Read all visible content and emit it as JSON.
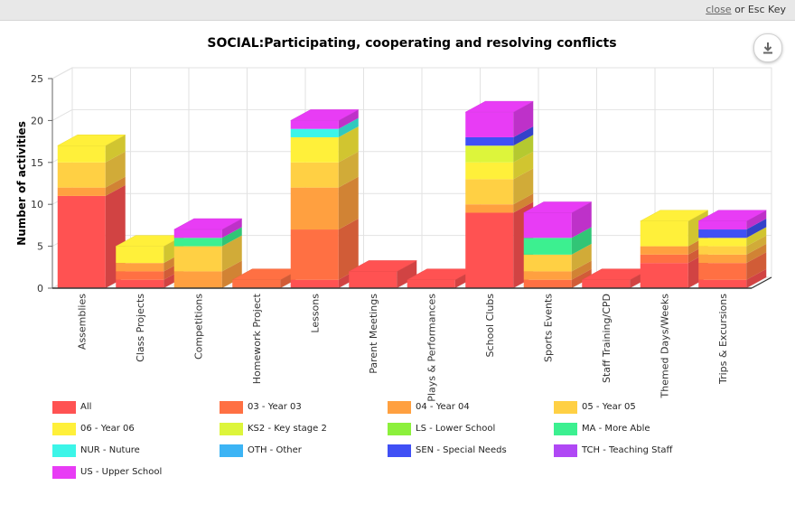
{
  "topbar": {
    "close_link": "close",
    "close_suffix": " or Esc Key"
  },
  "download_icon": "download-icon",
  "chart_data": {
    "type": "bar",
    "stacked": true,
    "three_d": true,
    "title": "SOCIAL:Participating, cooperating and resolving conflicts",
    "xlabel": "",
    "ylabel": "Number of activities",
    "ylim": [
      0,
      25
    ],
    "yticks": [
      0,
      5,
      10,
      15,
      20,
      25
    ],
    "grid": true,
    "legend_position": "bottom",
    "categories": [
      "Assemblies",
      "Class Projects",
      "Competitions",
      "Homework Project",
      "Lessons",
      "Parent Meetings",
      "Plays & Performances",
      "School Clubs",
      "Sports Events",
      "Staff Training/CPD",
      "Themed Days/Weeks",
      "Trips & Excursions"
    ],
    "series": [
      {
        "name": "All",
        "color": "#ff5252",
        "values": [
          11,
          1,
          0,
          0,
          1,
          2,
          1,
          9,
          0,
          1,
          3,
          1
        ]
      },
      {
        "name": "03 - Year 03",
        "color": "#ff7043",
        "values": [
          0,
          1,
          0,
          1,
          6,
          0,
          0,
          0,
          1,
          0,
          1,
          2
        ]
      },
      {
        "name": "04 - Year 04",
        "color": "#ffa040",
        "values": [
          1,
          1,
          2,
          0,
          5,
          0,
          0,
          1,
          1,
          0,
          1,
          1
        ]
      },
      {
        "name": "05 - Year 05",
        "color": "#ffd044",
        "values": [
          3,
          0,
          3,
          0,
          3,
          0,
          0,
          3,
          2,
          0,
          0,
          1
        ]
      },
      {
        "name": "06 - Year 06",
        "color": "#fff03a",
        "values": [
          2,
          2,
          0,
          0,
          3,
          0,
          0,
          2,
          0,
          0,
          3,
          1
        ]
      },
      {
        "name": "KS2 - Key stage 2",
        "color": "#ddf53b",
        "values": [
          0,
          0,
          0,
          0,
          0,
          0,
          0,
          2,
          0,
          0,
          0,
          0
        ]
      },
      {
        "name": "LS - Lower School",
        "color": "#8cf03c",
        "values": [
          0,
          0,
          0,
          0,
          0,
          0,
          0,
          0,
          0,
          0,
          0,
          0
        ]
      },
      {
        "name": "MA - More Able",
        "color": "#3cf090",
        "values": [
          0,
          0,
          1,
          0,
          0,
          0,
          0,
          0,
          2,
          0,
          0,
          0
        ]
      },
      {
        "name": "NUR - Nuture",
        "color": "#3cf5e8",
        "values": [
          0,
          0,
          0,
          0,
          1,
          0,
          0,
          0,
          0,
          0,
          0,
          0
        ]
      },
      {
        "name": "OTH - Other",
        "color": "#3cb4f5",
        "values": [
          0,
          0,
          0,
          0,
          0,
          0,
          0,
          0,
          0,
          0,
          0,
          0
        ]
      },
      {
        "name": "SEN - Special Needs",
        "color": "#4050f5",
        "values": [
          0,
          0,
          0,
          0,
          0,
          0,
          0,
          1,
          0,
          0,
          0,
          1
        ]
      },
      {
        "name": "TCH - Teaching Staff",
        "color": "#b048f5",
        "values": [
          0,
          0,
          0,
          0,
          0,
          0,
          0,
          0,
          0,
          0,
          0,
          0
        ]
      },
      {
        "name": "US - Upper School",
        "color": "#e83cf5",
        "values": [
          0,
          0,
          1,
          0,
          1,
          0,
          0,
          3,
          3,
          0,
          0,
          1
        ]
      }
    ]
  }
}
